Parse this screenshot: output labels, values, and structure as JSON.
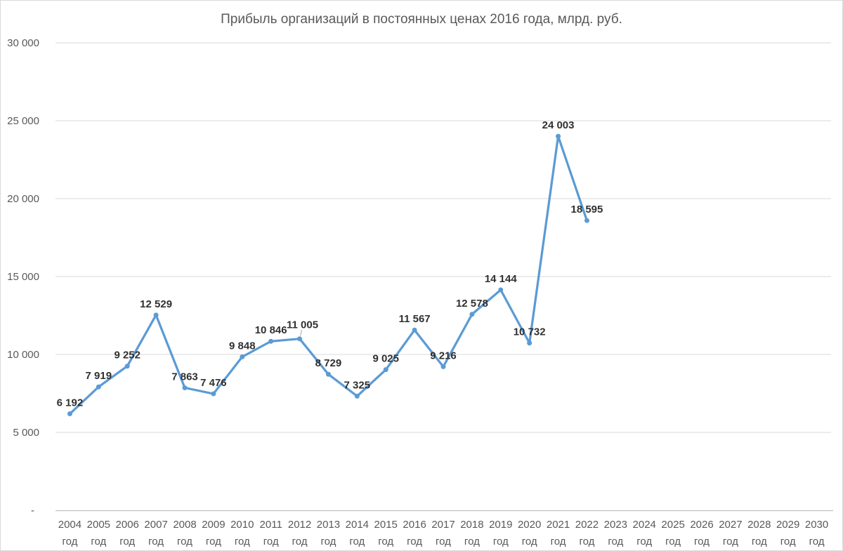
{
  "chart_data": {
    "type": "line",
    "title": "Прибыль организаций в постоянных ценах 2016 года, млрд. руб.",
    "categories": [
      "2004",
      "2005",
      "2006",
      "2007",
      "2008",
      "2009",
      "2010",
      "2011",
      "2012",
      "2013",
      "2014",
      "2015",
      "2016",
      "2017",
      "2018",
      "2019",
      "2020",
      "2021",
      "2022",
      "2023",
      "2024",
      "2025",
      "2026",
      "2027",
      "2028",
      "2029",
      "2030"
    ],
    "category_suffix": "год",
    "series": [
      {
        "values": [
          6192,
          7919,
          9252,
          12529,
          7863,
          7476,
          9848,
          10846,
          11005,
          8729,
          7325,
          9025,
          11567,
          9216,
          12578,
          14144,
          10732,
          24003,
          18595
        ],
        "data_labels": [
          "6 192",
          "7 919",
          "9 252",
          "12 529",
          "7 863",
          "7 476",
          "9 848",
          "10 846",
          "11 005",
          "8 729",
          "7 325",
          "9 025",
          "11 567",
          "9 216",
          "12 578",
          "14 144",
          "10 732",
          "24 003",
          "18 595"
        ]
      }
    ],
    "ylim": [
      0,
      30000
    ],
    "yticks": [
      0,
      5000,
      10000,
      15000,
      20000,
      25000,
      30000
    ],
    "ytick_labels": [
      "-",
      "5 000",
      "10 000",
      "15 000",
      "20 000",
      "25 000",
      "30 000"
    ],
    "grid": true,
    "legend": "none",
    "marker": "circle"
  },
  "colors": {
    "series": "#5B9BD5",
    "gridline": "#D9D9D9",
    "axis_line": "#BFBFBF",
    "leader_line": "#A6A6A6",
    "axis_text": "#595959",
    "data_label_text": "#303030",
    "frame_border": "#D9D9D9",
    "background": "#FFFFFF"
  }
}
